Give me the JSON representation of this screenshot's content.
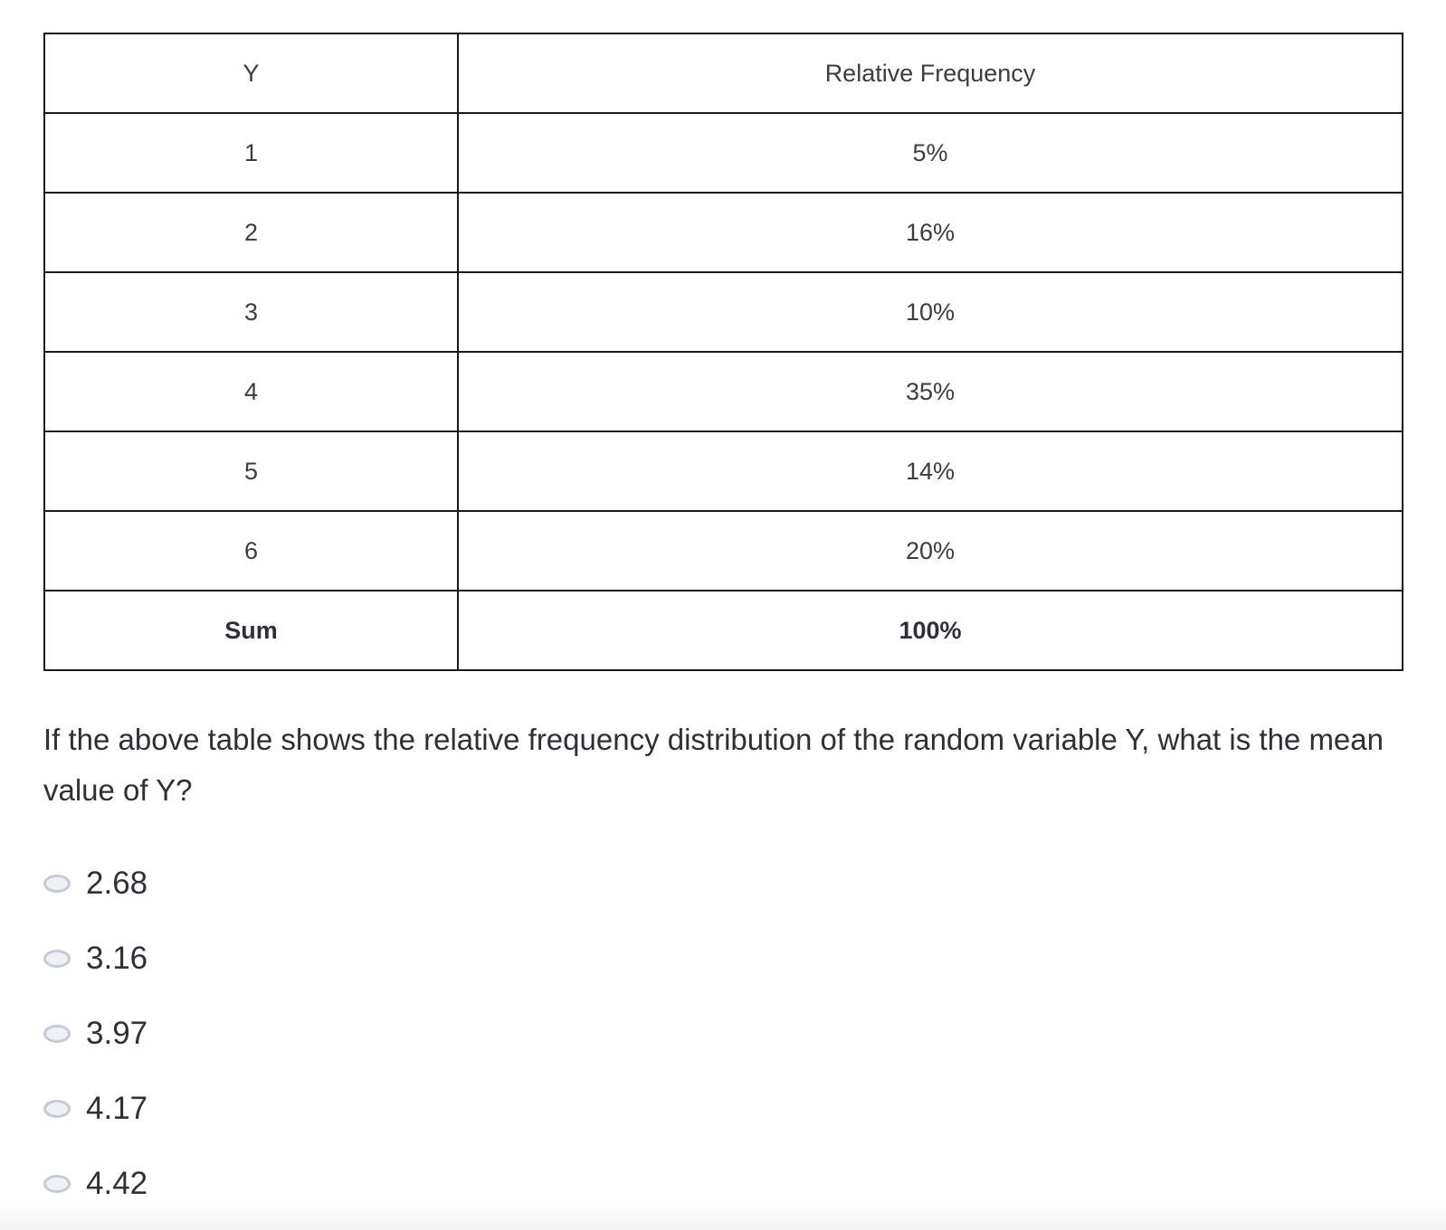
{
  "table": {
    "headers": [
      "Y",
      "Relative Frequency"
    ],
    "rows": [
      [
        "1",
        "5%"
      ],
      [
        "2",
        "16%"
      ],
      [
        "3",
        "10%"
      ],
      [
        "4",
        "35%"
      ],
      [
        "5",
        "14%"
      ],
      [
        "6",
        "20%"
      ]
    ],
    "sum": [
      "Sum",
      "100%"
    ]
  },
  "question": "If the above table shows the relative frequency distribution of the random variable Y, what is the mean value of Y?",
  "options": [
    "2.68",
    "3.16",
    "3.97",
    "4.17",
    "4.42"
  ]
}
